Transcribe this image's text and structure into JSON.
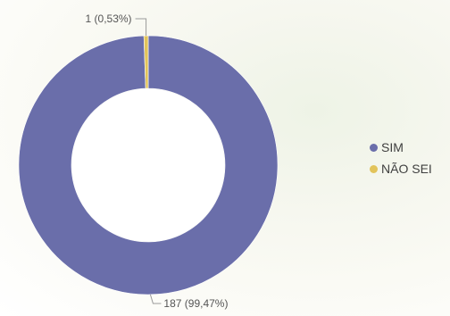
{
  "chart_data": {
    "type": "pie",
    "variant": "donut",
    "categories": [
      "SIM",
      "NÃO SEI"
    ],
    "values": [
      187,
      1
    ],
    "data_labels": [
      "187 (99,47%)",
      "1 (0,53%)"
    ],
    "colors": [
      "#6a6eaa",
      "#e2c45b"
    ],
    "legend_position": "right"
  },
  "legend": {
    "items": [
      {
        "label": "SIM",
        "color": "#6a6eaa"
      },
      {
        "label": "NÃO SEI",
        "color": "#e2c45b"
      }
    ]
  }
}
